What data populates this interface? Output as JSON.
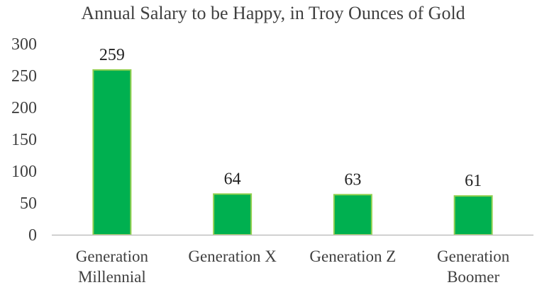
{
  "chart_data": {
    "type": "bar",
    "title": "Annual Salary to be Happy, in Troy Ounces of Gold",
    "xlabel": "",
    "ylabel": "",
    "categories": [
      [
        "Generation",
        "Millennial"
      ],
      [
        "Generation X"
      ],
      [
        "Generation Z"
      ],
      [
        "Generation",
        "Boomer"
      ]
    ],
    "values": [
      259,
      64,
      63,
      61
    ],
    "data_labels": [
      "259",
      "64",
      "63",
      "61"
    ],
    "ylim": [
      0,
      300
    ],
    "yticks": [
      0,
      50,
      100,
      150,
      200,
      250,
      300
    ],
    "ytick_labels": [
      "0",
      "50",
      "100",
      "150",
      "200",
      "250",
      "300"
    ],
    "grid": false,
    "legend": "none",
    "colors": {
      "bar_fill": "#00B050",
      "bar_stroke": "#92D050",
      "axis": "#BFBFBF",
      "text": "#404040"
    }
  }
}
